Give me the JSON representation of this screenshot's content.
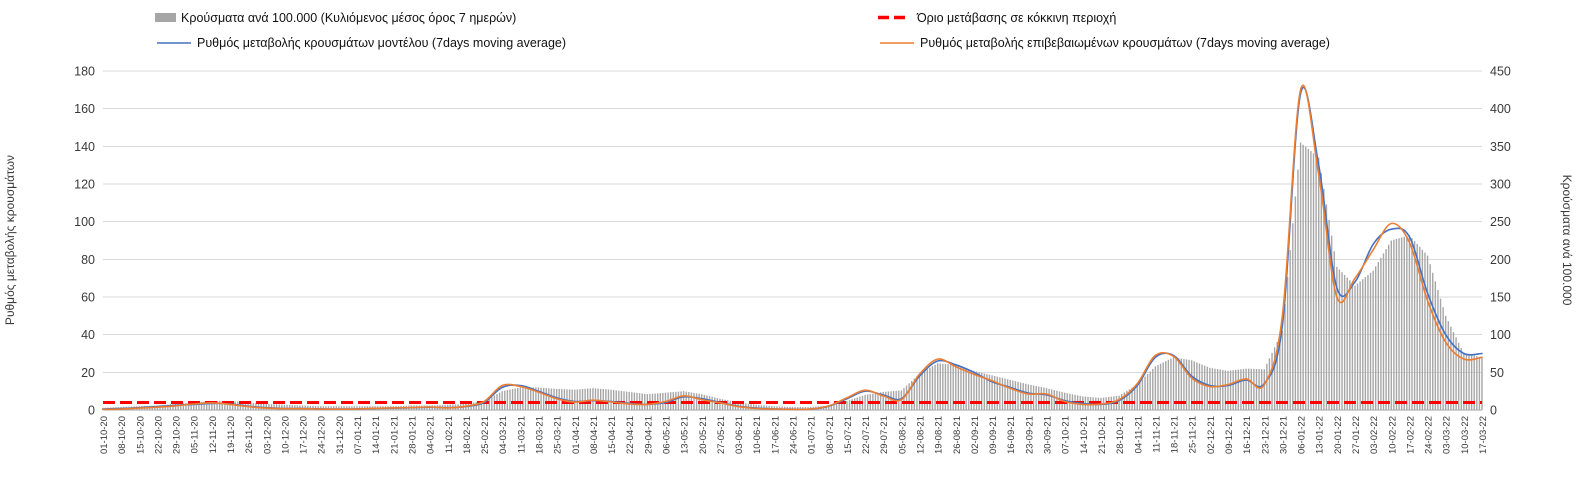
{
  "chart_data": {
    "type": "combo",
    "title": "",
    "legend_position": "top",
    "grid": true,
    "plot_bg": "#ffffff",
    "grid_color": "#d9d9d9",
    "axis_line_color": "#a6a6a6",
    "text_color": "#3a3a3a",
    "x": [
      "01-10-20",
      "08-10-20",
      "15-10-20",
      "22-10-20",
      "29-10-20",
      "05-11-20",
      "12-11-20",
      "19-11-20",
      "26-11-20",
      "03-12-20",
      "10-12-20",
      "17-12-20",
      "24-12-20",
      "31-12-20",
      "07-01-21",
      "14-01-21",
      "21-01-21",
      "28-01-21",
      "04-02-21",
      "11-02-21",
      "18-02-21",
      "25-02-21",
      "04-03-21",
      "11-03-21",
      "18-03-21",
      "25-03-21",
      "01-04-21",
      "08-04-21",
      "15-04-21",
      "22-04-21",
      "29-04-21",
      "06-05-21",
      "13-05-21",
      "20-05-21",
      "27-05-21",
      "03-06-21",
      "10-06-21",
      "17-06-21",
      "24-06-21",
      "01-07-21",
      "08-07-21",
      "15-07-21",
      "22-07-21",
      "29-07-21",
      "05-08-21",
      "12-08-21",
      "19-08-21",
      "26-08-21",
      "02-09-21",
      "09-09-21",
      "16-09-21",
      "23-09-21",
      "30-09-21",
      "07-10-21",
      "14-10-21",
      "21-10-21",
      "28-10-21",
      "04-11-21",
      "11-11-21",
      "18-11-21",
      "25-11-21",
      "02-12-21",
      "09-12-21",
      "16-12-21",
      "23-12-21",
      "30-12-21",
      "06-01-22",
      "13-01-22",
      "20-01-22",
      "27-01-22",
      "03-02-22",
      "10-02-22",
      "17-02-22",
      "24-02-22",
      "03-03-22",
      "10-03-22",
      "17-03-22"
    ],
    "left_axis": {
      "label": "Ρυθμός μεταβολής κρουσμάτων",
      "min": 0,
      "max": 180,
      "step": 20,
      "ticks": [
        0,
        20,
        40,
        60,
        80,
        100,
        120,
        140,
        160,
        180
      ]
    },
    "right_axis": {
      "label": "Κρούσματα ανά 100.000",
      "min": 0,
      "max": 450,
      "step": 50,
      "ticks": [
        0,
        50,
        100,
        150,
        200,
        250,
        300,
        350,
        400,
        450
      ]
    },
    "series": [
      {
        "name": "Κρούσματα ανά 100.000 (Κυλιόμενος μέσος όρος 7 ημερών)",
        "type": "bar",
        "axis": "right",
        "color": "#a6a6a6",
        "values": [
          3,
          4,
          5,
          6,
          8,
          10,
          12,
          12,
          10,
          8,
          7,
          6,
          5,
          5,
          5,
          5,
          5,
          6,
          6,
          7,
          8,
          12,
          25,
          30,
          30,
          28,
          27,
          29,
          27,
          24,
          21,
          23,
          25,
          21,
          15,
          10,
          7,
          5,
          4,
          4,
          6,
          12,
          20,
          24,
          26,
          48,
          62,
          60,
          52,
          46,
          40,
          34,
          29,
          23,
          18,
          16,
          19,
          34,
          58,
          70,
          66,
          56,
          52,
          55,
          54,
          105,
          355,
          335,
          190,
          165,
          185,
          225,
          232,
          205,
          125,
          75,
          70
        ]
      },
      {
        "name": "Ρυθμός μεταβολής κρουσμάτων μοντέλου (7days moving average)",
        "type": "line",
        "axis": "left",
        "color": "#4472c4",
        "values": [
          0.5,
          0.8,
          1.2,
          1.8,
          2.5,
          3,
          3.5,
          3.2,
          2,
          1.2,
          0.8,
          0.8,
          0.6,
          0.5,
          0.6,
          0.8,
          1,
          1.2,
          1.5,
          1.2,
          1.8,
          4,
          12,
          13,
          10,
          6.5,
          4.5,
          5,
          4.5,
          3.5,
          3,
          4,
          7,
          6,
          4,
          2,
          1,
          0.6,
          0.4,
          0.5,
          2,
          6,
          10,
          8,
          6,
          18,
          26,
          24,
          20,
          15,
          12,
          9,
          8,
          5,
          3.5,
          3,
          5,
          13,
          28,
          29,
          18,
          13,
          13,
          16,
          14,
          45,
          168,
          130,
          65,
          68,
          88,
          96,
          92,
          62,
          40,
          30,
          30
        ]
      },
      {
        "name": "Ρυθμός μεταβολής επιβεβαιωμένων κρουσμάτων (7days moving average)",
        "type": "line",
        "axis": "left",
        "color": "#ed7d31",
        "values": [
          0.3,
          0.5,
          1,
          1.5,
          2.2,
          3.2,
          3.8,
          3,
          1.8,
          1,
          0.7,
          0.7,
          0.5,
          0.4,
          0.5,
          0.9,
          1.1,
          1.3,
          1.6,
          1.1,
          2,
          4.5,
          13,
          12.5,
          9.5,
          6,
          4.2,
          5.2,
          4.3,
          3.2,
          3,
          4.5,
          7.5,
          5.5,
          3.8,
          1.8,
          0.8,
          0.5,
          0.3,
          0.5,
          2.2,
          6.5,
          10.5,
          7.5,
          5.5,
          19,
          27,
          23,
          19,
          15.5,
          11.5,
          8.5,
          8.5,
          4.5,
          3,
          3.2,
          5.5,
          14,
          29,
          28.5,
          17,
          12.5,
          13.5,
          16.5,
          13.5,
          50,
          170,
          125,
          60,
          70,
          85,
          99,
          89,
          58,
          36,
          27,
          28
        ]
      },
      {
        "name": "Όριο μετάβασης σε κόκκινη περιοχή",
        "type": "threshold",
        "axis": "left",
        "color": "#ff0000",
        "value": 4
      }
    ]
  }
}
